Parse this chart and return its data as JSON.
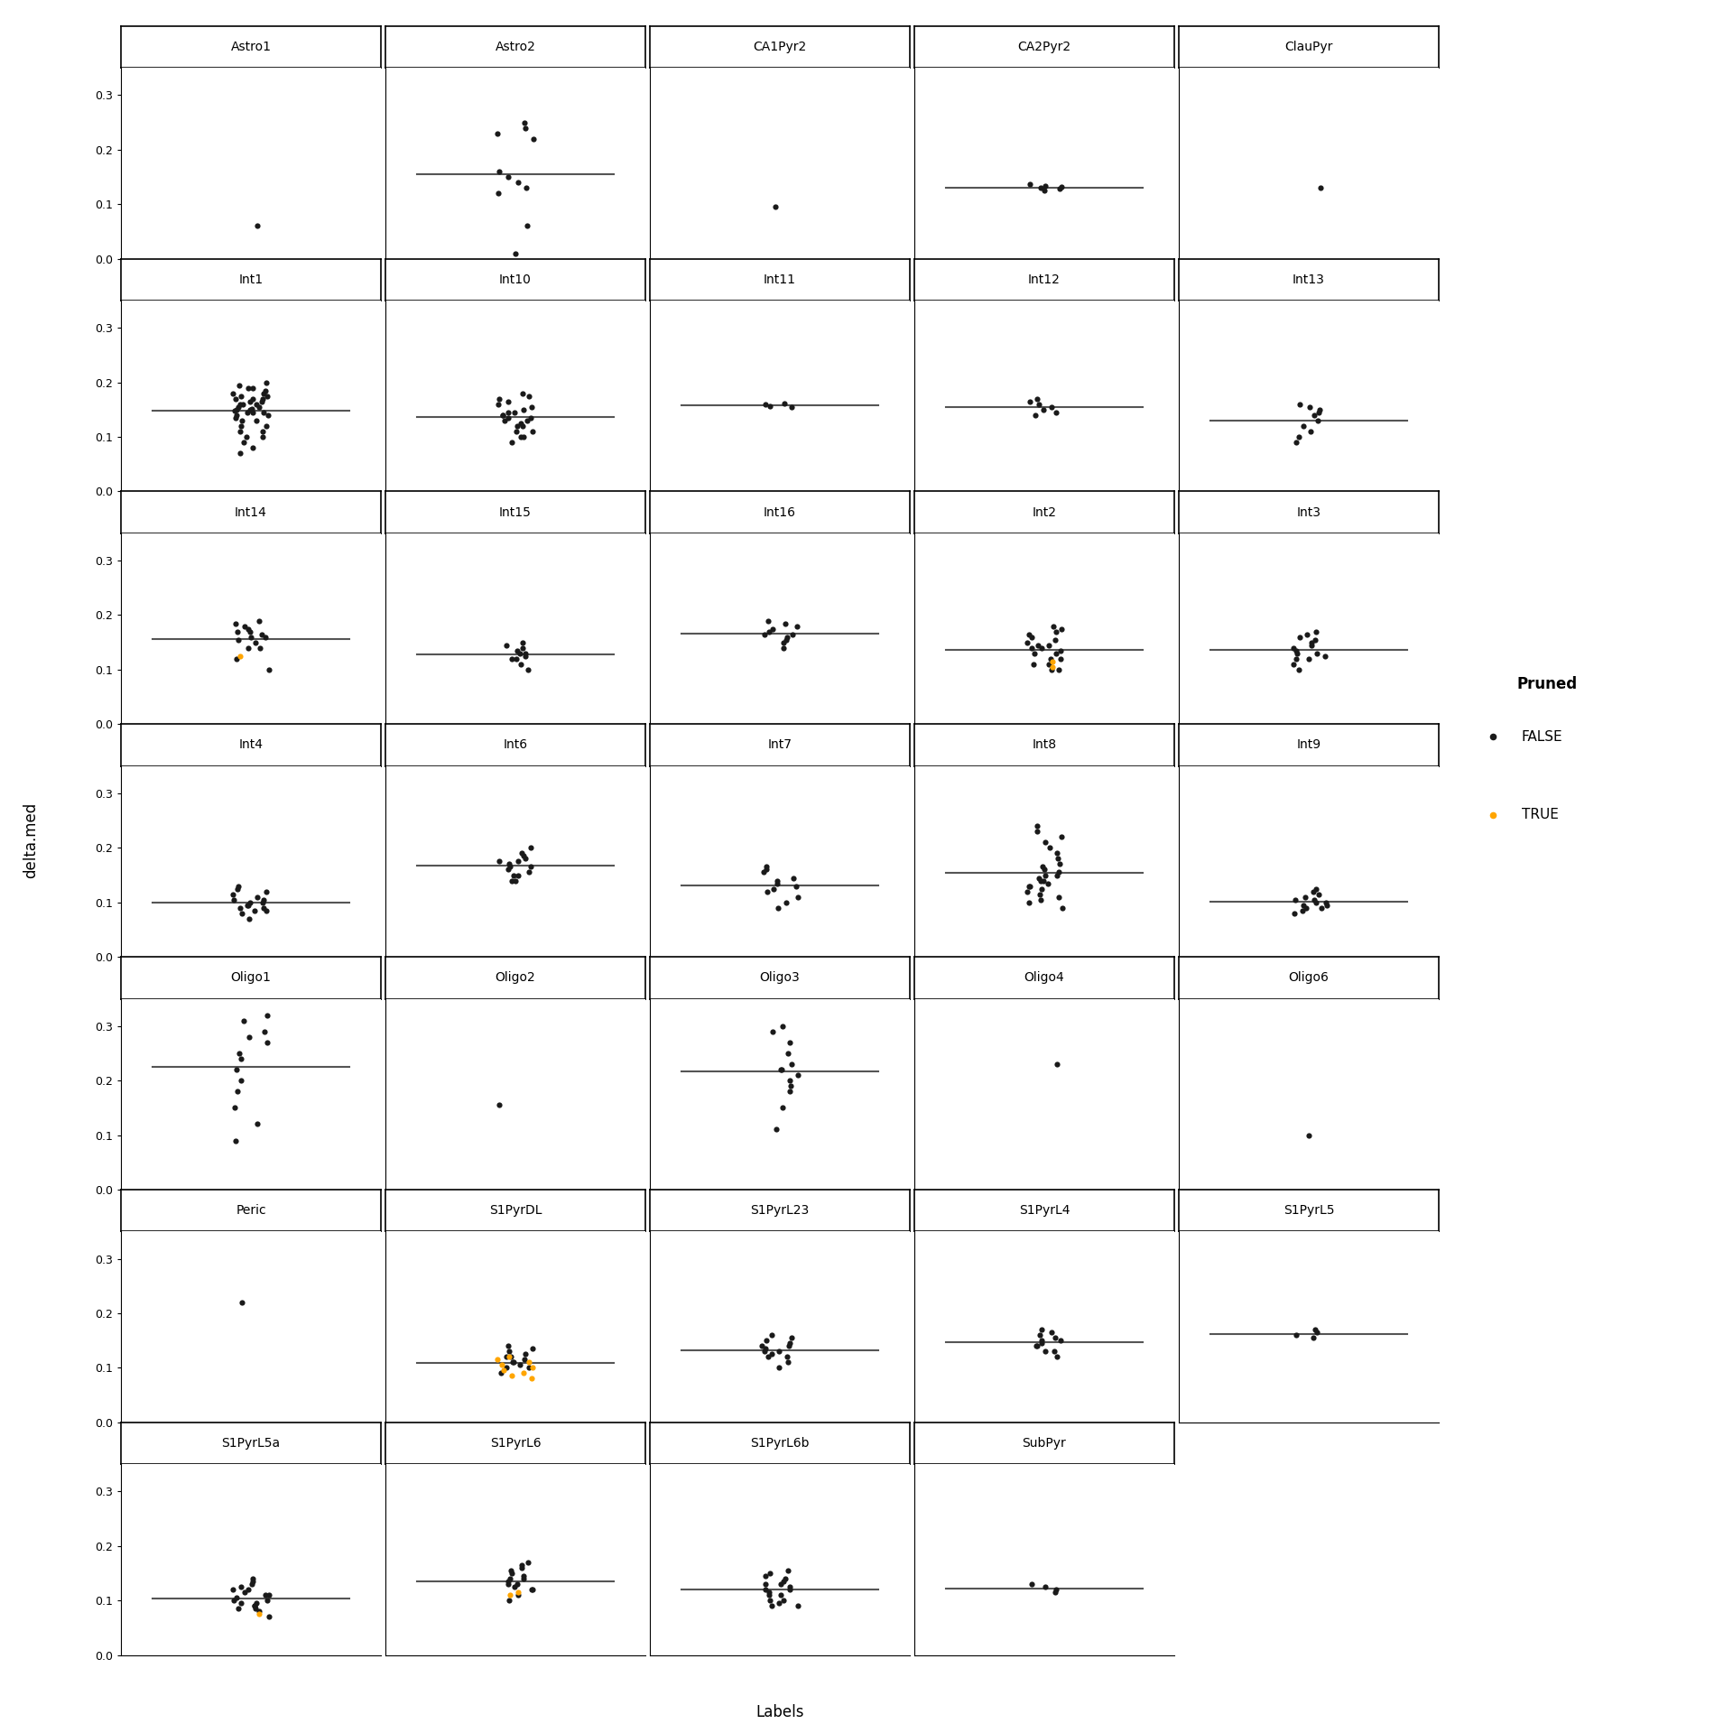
{
  "panels": [
    {
      "label": "Astro1",
      "row": 0,
      "col": 0,
      "false_pts": [
        0.06
      ],
      "true_pts": []
    },
    {
      "label": "Astro2",
      "row": 0,
      "col": 1,
      "false_pts": [
        0.01,
        0.06,
        0.12,
        0.13,
        0.14,
        0.15,
        0.16,
        0.22,
        0.23,
        0.24,
        0.25
      ],
      "true_pts": []
    },
    {
      "label": "CA1Pyr2",
      "row": 0,
      "col": 2,
      "false_pts": [
        0.095
      ],
      "true_pts": []
    },
    {
      "label": "CA2Pyr2",
      "row": 0,
      "col": 3,
      "false_pts": [
        0.125,
        0.128,
        0.13,
        0.132,
        0.134,
        0.136
      ],
      "true_pts": []
    },
    {
      "label": "ClauPyr",
      "row": 0,
      "col": 4,
      "false_pts": [
        0.13
      ],
      "true_pts": []
    },
    {
      "label": "Int1",
      "row": 1,
      "col": 0,
      "false_pts": [
        0.07,
        0.08,
        0.09,
        0.1,
        0.11,
        0.12,
        0.13,
        0.14,
        0.145,
        0.15,
        0.155,
        0.16,
        0.165,
        0.17,
        0.175,
        0.18,
        0.185,
        0.19,
        0.195,
        0.2,
        0.145,
        0.148,
        0.152,
        0.16,
        0.165,
        0.17,
        0.13,
        0.14,
        0.15,
        0.16,
        0.17,
        0.1,
        0.11,
        0.12,
        0.175,
        0.18,
        0.19,
        0.155,
        0.145,
        0.135
      ],
      "true_pts": []
    },
    {
      "label": "Int10",
      "row": 1,
      "col": 1,
      "false_pts": [
        0.09,
        0.1,
        0.11,
        0.12,
        0.125,
        0.13,
        0.135,
        0.14,
        0.145,
        0.15,
        0.155,
        0.16,
        0.165,
        0.17,
        0.175,
        0.18,
        0.13,
        0.135,
        0.14,
        0.145,
        0.12,
        0.11,
        0.1
      ],
      "true_pts": []
    },
    {
      "label": "Int11",
      "row": 1,
      "col": 2,
      "false_pts": [
        0.155,
        0.157,
        0.16,
        0.162
      ],
      "true_pts": []
    },
    {
      "label": "Int12",
      "row": 1,
      "col": 3,
      "false_pts": [
        0.14,
        0.145,
        0.15,
        0.155,
        0.16,
        0.165,
        0.17
      ],
      "true_pts": []
    },
    {
      "label": "Int13",
      "row": 1,
      "col": 4,
      "false_pts": [
        0.09,
        0.1,
        0.11,
        0.12,
        0.13,
        0.14,
        0.145,
        0.15,
        0.155,
        0.16
      ],
      "true_pts": []
    },
    {
      "label": "Int14",
      "row": 2,
      "col": 0,
      "false_pts": [
        0.1,
        0.12,
        0.14,
        0.155,
        0.16,
        0.165,
        0.17,
        0.175,
        0.18,
        0.185,
        0.19,
        0.14,
        0.15,
        0.16,
        0.17
      ],
      "true_pts": [
        0.125
      ]
    },
    {
      "label": "Int15",
      "row": 2,
      "col": 1,
      "false_pts": [
        0.1,
        0.11,
        0.12,
        0.125,
        0.13,
        0.135,
        0.14,
        0.145,
        0.15,
        0.12,
        0.13
      ],
      "true_pts": []
    },
    {
      "label": "Int16",
      "row": 2,
      "col": 2,
      "false_pts": [
        0.14,
        0.15,
        0.16,
        0.165,
        0.17,
        0.175,
        0.18,
        0.185,
        0.19,
        0.155,
        0.165
      ],
      "true_pts": []
    },
    {
      "label": "Int2",
      "row": 2,
      "col": 3,
      "false_pts": [
        0.1,
        0.11,
        0.12,
        0.13,
        0.14,
        0.145,
        0.15,
        0.155,
        0.16,
        0.165,
        0.17,
        0.175,
        0.18,
        0.13,
        0.135,
        0.14,
        0.145,
        0.1,
        0.11,
        0.12
      ],
      "true_pts": [
        0.105,
        0.115
      ]
    },
    {
      "label": "Int3",
      "row": 2,
      "col": 4,
      "false_pts": [
        0.1,
        0.11,
        0.12,
        0.125,
        0.13,
        0.135,
        0.14,
        0.145,
        0.15,
        0.155,
        0.16,
        0.165,
        0.17,
        0.12,
        0.13
      ],
      "true_pts": []
    },
    {
      "label": "Int4",
      "row": 3,
      "col": 0,
      "false_pts": [
        0.07,
        0.08,
        0.085,
        0.09,
        0.095,
        0.1,
        0.105,
        0.11,
        0.115,
        0.12,
        0.125,
        0.13,
        0.085,
        0.09,
        0.095,
        0.1,
        0.105
      ],
      "true_pts": []
    },
    {
      "label": "Int6",
      "row": 3,
      "col": 1,
      "false_pts": [
        0.14,
        0.15,
        0.16,
        0.165,
        0.17,
        0.175,
        0.18,
        0.185,
        0.19,
        0.2,
        0.155,
        0.165,
        0.175,
        0.14,
        0.15
      ],
      "true_pts": []
    },
    {
      "label": "Int7",
      "row": 3,
      "col": 2,
      "false_pts": [
        0.09,
        0.1,
        0.11,
        0.12,
        0.125,
        0.13,
        0.135,
        0.14,
        0.145,
        0.155,
        0.16,
        0.165
      ],
      "true_pts": []
    },
    {
      "label": "Int8",
      "row": 3,
      "col": 3,
      "false_pts": [
        0.09,
        0.1,
        0.105,
        0.11,
        0.115,
        0.12,
        0.125,
        0.13,
        0.135,
        0.14,
        0.145,
        0.15,
        0.155,
        0.16,
        0.165,
        0.17,
        0.18,
        0.19,
        0.2,
        0.21,
        0.22,
        0.23,
        0.24,
        0.13,
        0.14,
        0.15
      ],
      "true_pts": []
    },
    {
      "label": "Int9",
      "row": 3,
      "col": 4,
      "false_pts": [
        0.08,
        0.085,
        0.09,
        0.095,
        0.1,
        0.105,
        0.11,
        0.115,
        0.12,
        0.125,
        0.09,
        0.095,
        0.1,
        0.105
      ],
      "true_pts": []
    },
    {
      "label": "Oligo1",
      "row": 4,
      "col": 0,
      "false_pts": [
        0.09,
        0.12,
        0.15,
        0.2,
        0.22,
        0.24,
        0.27,
        0.29,
        0.31,
        0.32,
        0.18,
        0.25,
        0.28
      ],
      "true_pts": []
    },
    {
      "label": "Oligo2",
      "row": 4,
      "col": 1,
      "false_pts": [
        0.155
      ],
      "true_pts": []
    },
    {
      "label": "Oligo3",
      "row": 4,
      "col": 2,
      "false_pts": [
        0.11,
        0.15,
        0.18,
        0.2,
        0.21,
        0.22,
        0.23,
        0.25,
        0.27,
        0.29,
        0.3,
        0.19,
        0.22
      ],
      "true_pts": []
    },
    {
      "label": "Oligo4",
      "row": 4,
      "col": 3,
      "false_pts": [
        0.23
      ],
      "true_pts": []
    },
    {
      "label": "Oligo6",
      "row": 4,
      "col": 4,
      "false_pts": [
        0.1
      ],
      "true_pts": []
    },
    {
      "label": "Peric",
      "row": 5,
      "col": 0,
      "false_pts": [
        0.22
      ],
      "true_pts": []
    },
    {
      "label": "S1PyrDL",
      "row": 5,
      "col": 1,
      "false_pts": [
        0.09,
        0.1,
        0.105,
        0.11,
        0.115,
        0.12,
        0.125,
        0.13,
        0.135,
        0.14,
        0.1,
        0.11,
        0.12
      ],
      "true_pts": [
        0.08,
        0.085,
        0.09,
        0.095,
        0.1,
        0.105,
        0.11,
        0.115,
        0.12
      ]
    },
    {
      "label": "S1PyrL23",
      "row": 5,
      "col": 2,
      "false_pts": [
        0.1,
        0.11,
        0.12,
        0.125,
        0.13,
        0.135,
        0.14,
        0.145,
        0.15,
        0.155,
        0.16,
        0.12,
        0.13,
        0.14
      ],
      "true_pts": []
    },
    {
      "label": "S1PyrL4",
      "row": 5,
      "col": 3,
      "false_pts": [
        0.12,
        0.13,
        0.14,
        0.145,
        0.15,
        0.155,
        0.16,
        0.165,
        0.17,
        0.13,
        0.14,
        0.15
      ],
      "true_pts": []
    },
    {
      "label": "S1PyrL5",
      "row": 5,
      "col": 4,
      "false_pts": [
        0.155,
        0.16,
        0.165,
        0.17
      ],
      "true_pts": []
    },
    {
      "label": "S1PyrL5a",
      "row": 6,
      "col": 0,
      "false_pts": [
        0.07,
        0.08,
        0.085,
        0.09,
        0.095,
        0.1,
        0.105,
        0.11,
        0.115,
        0.12,
        0.125,
        0.13,
        0.135,
        0.14,
        0.09,
        0.1,
        0.11,
        0.12,
        0.085,
        0.095
      ],
      "true_pts": [
        0.075
      ]
    },
    {
      "label": "S1PyrL6",
      "row": 6,
      "col": 1,
      "false_pts": [
        0.1,
        0.11,
        0.12,
        0.125,
        0.13,
        0.135,
        0.14,
        0.145,
        0.15,
        0.155,
        0.16,
        0.165,
        0.17,
        0.12,
        0.13,
        0.14
      ],
      "true_pts": [
        0.11,
        0.115
      ]
    },
    {
      "label": "S1PyrL6b",
      "row": 6,
      "col": 2,
      "false_pts": [
        0.09,
        0.1,
        0.11,
        0.115,
        0.12,
        0.125,
        0.13,
        0.135,
        0.14,
        0.145,
        0.15,
        0.155,
        0.1,
        0.11,
        0.12,
        0.13,
        0.09,
        0.095
      ],
      "true_pts": []
    },
    {
      "label": "SubPyr",
      "row": 6,
      "col": 3,
      "false_pts": [
        0.115,
        0.12,
        0.125,
        0.13
      ],
      "true_pts": []
    }
  ],
  "nrows": 7,
  "ncols": 5,
  "ylim": [
    0.0,
    0.35
  ],
  "yticks": [
    0.0,
    0.1,
    0.2,
    0.3
  ],
  "ytick_labels": [
    "0.0",
    "0.1",
    "0.2",
    "0.3"
  ],
  "ylabel": "delta.med",
  "xlabel": "Labels",
  "false_color": "#1a1a1a",
  "true_color": "#FFA500",
  "violin_color": "#C8C8C8",
  "violin_edge_color": "#555555",
  "background_color": "#ffffff",
  "panel_label_fontsize": 10,
  "tick_fontsize": 9,
  "axis_label_fontsize": 12,
  "legend_title": "Pruned",
  "legend_false": "FALSE",
  "legend_true": "TRUE",
  "legend_fontsize": 11,
  "point_size": 20
}
